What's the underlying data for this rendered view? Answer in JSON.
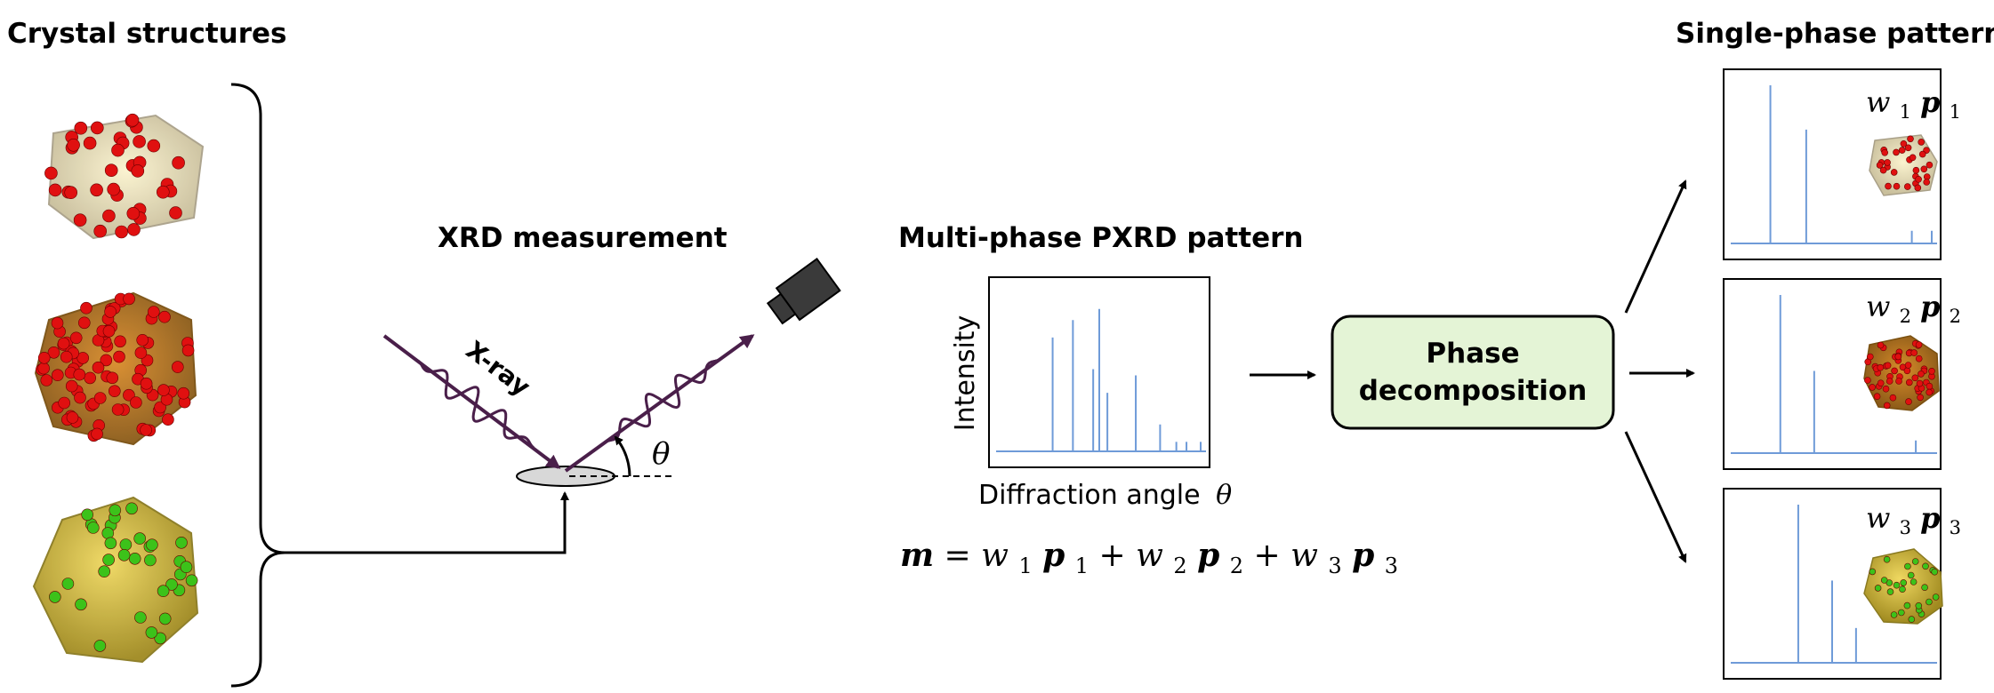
{
  "labels": {
    "crystal_structures": "Crystal structures",
    "xrd_measurement": "XRD measurement",
    "xray": "X-ray",
    "theta": "θ",
    "multi_phase_title": "Multi-phase PXRD pattern",
    "intensity": "Intensity",
    "diffraction_angle": "Diffraction angle",
    "phase_decomposition_line1": "Phase",
    "phase_decomposition_line2": "decomposition",
    "single_phase_title": "Single-phase patterns"
  },
  "equation": {
    "lhs": "m",
    "equals": " = ",
    "terms": [
      {
        "w": "w",
        "sub": "1",
        "p": "p",
        "psub": "1"
      },
      {
        "w": "w",
        "sub": "2",
        "p": "p",
        "psub": "2"
      },
      {
        "w": "w",
        "sub": "3",
        "p": "p",
        "psub": "3"
      }
    ],
    "plus": " + "
  },
  "panel_labels": [
    {
      "w": "w",
      "sub": "1",
      "p": "p",
      "psub": "1"
    },
    {
      "w": "w",
      "sub": "2",
      "p": "p",
      "psub": "2"
    },
    {
      "w": "w",
      "sub": "3",
      "p": "p",
      "psub": "3"
    }
  ],
  "colors": {
    "beam": "#4a1f4a",
    "peak": "#6f9bd8",
    "box_fill": "#e4f4d6",
    "red_atom": "#e01010",
    "green_atom": "#3cc21a",
    "tan_poly": "#efe0b0",
    "orange_poly": "#c07818",
    "yellow_poly": "#d6b72a"
  },
  "chart_data": [
    {
      "type": "bar",
      "name_hint": "multi-phase",
      "peaks_x": [
        0.27,
        0.37,
        0.47,
        0.5,
        0.54,
        0.68,
        0.8,
        0.88,
        0.93,
        1.03
      ],
      "peaks_y": [
        0.72,
        0.83,
        0.52,
        0.9,
        0.37,
        0.48,
        0.17,
        0.06,
        0.06,
        0.06
      ],
      "xlabel": "Diffraction angle θ",
      "ylabel": "Intensity"
    },
    {
      "type": "bar",
      "name_hint": "single-phase-1",
      "peaks_x": [
        0.19,
        0.37,
        0.9,
        1.01
      ],
      "peaks_y": [
        1.0,
        0.72,
        0.08,
        0.08
      ]
    },
    {
      "type": "bar",
      "name_hint": "single-phase-2",
      "peaks_x": [
        0.24,
        0.41,
        0.92
      ],
      "peaks_y": [
        1.0,
        0.52,
        0.08
      ]
    },
    {
      "type": "bar",
      "name_hint": "single-phase-3",
      "peaks_x": [
        0.33,
        0.5,
        0.62
      ],
      "peaks_y": [
        1.0,
        0.52,
        0.22
      ]
    }
  ]
}
